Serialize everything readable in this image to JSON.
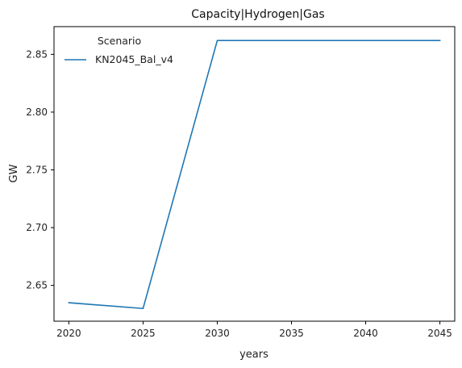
{
  "chart_data": {
    "type": "line",
    "title": "Capacity|Hydrogen|Gas",
    "xlabel": "years",
    "ylabel": "GW",
    "x": [
      2020,
      2025,
      2030,
      2035,
      2040,
      2045
    ],
    "xticks": [
      2020,
      2025,
      2030,
      2035,
      2040,
      2045
    ],
    "xlim": [
      2019,
      2046
    ],
    "yticks": [
      2.65,
      2.7,
      2.75,
      2.8,
      2.85
    ],
    "ytick_labels": [
      "2.65",
      "2.70",
      "2.75",
      "2.80",
      "2.85"
    ],
    "ylim": [
      2.619,
      2.874
    ],
    "grid": false,
    "legend": {
      "title": "Scenario",
      "position": "top-left"
    },
    "series": [
      {
        "name": "KN2045_Bal_v4",
        "color": "#1f77b4",
        "values": [
          2.635,
          2.63,
          2.862,
          2.862,
          2.862,
          2.862
        ]
      }
    ]
  }
}
